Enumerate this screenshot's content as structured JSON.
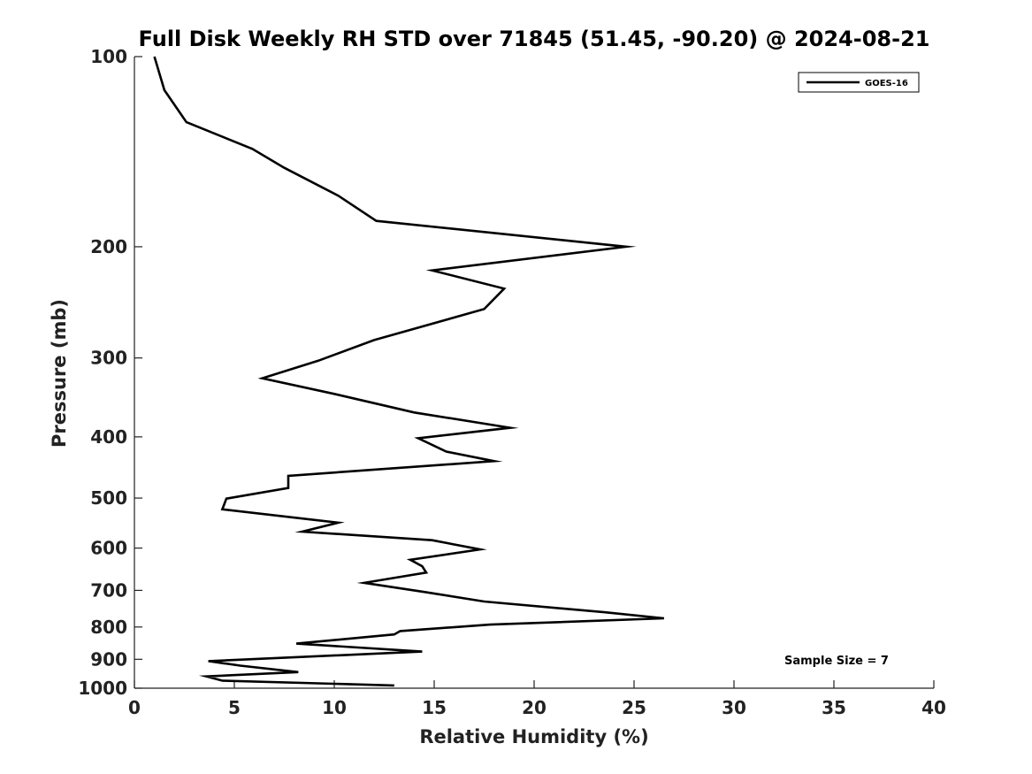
{
  "chart_data": {
    "type": "line",
    "title": "Full Disk Weekly RH STD over 71845 (51.45, -90.20) @ 2024-08-21",
    "xlabel": "Relative Humidity (%)",
    "ylabel": "Pressure (mb)",
    "xlim": [
      0,
      40
    ],
    "ylim": [
      1000,
      100
    ],
    "yscale": "log",
    "x_ticks": [
      "0",
      "5",
      "10",
      "15",
      "20",
      "25",
      "30",
      "35",
      "40"
    ],
    "y_ticks": [
      "100",
      "200",
      "300",
      "400",
      "500",
      "600",
      "700",
      "800",
      "900",
      "1000"
    ],
    "grid": false,
    "legend_position": "top-right",
    "annotation": "Sample Size = 7",
    "series": [
      {
        "name": "GOES-16",
        "color": "#000000",
        "x": [
          1.0,
          1.5,
          2.6,
          5.9,
          7.5,
          10.2,
          12.1,
          24.6,
          14.9,
          18.5,
          17.5,
          12.0,
          9.2,
          6.4,
          10.0,
          14.0,
          18.8,
          14.2,
          15.6,
          18.0,
          7.7,
          7.7,
          4.6,
          4.4,
          10.2,
          8.4,
          14.9,
          17.3,
          13.8,
          14.4,
          14.6,
          11.5,
          14.5,
          17.5,
          23.5,
          26.5,
          17.8,
          13.3,
          13.0,
          8.1,
          14.4,
          3.7,
          5.3,
          8.2,
          3.6,
          4.4,
          13.0
        ],
        "y": [
          100,
          113,
          127,
          140,
          150,
          166,
          182,
          200,
          218,
          233,
          251,
          281,
          303,
          323,
          342,
          366,
          387,
          402,
          422,
          437,
          461,
          482,
          501,
          521,
          547,
          565,
          583,
          603,
          626,
          641,
          656,
          681,
          704,
          729,
          758,
          775,
          793,
          812,
          822,
          850,
          875,
          906,
          921,
          943,
          958,
          973,
          990
        ]
      }
    ]
  }
}
